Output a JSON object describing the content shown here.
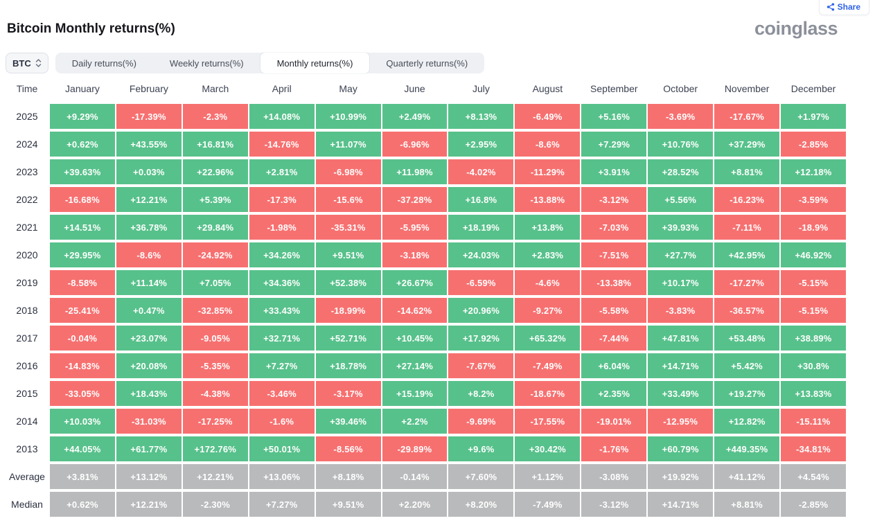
{
  "header": {
    "title": "Bitcoin Monthly returns(%)",
    "brand": "coinglass",
    "share_label": "Share"
  },
  "controls": {
    "symbol": "BTC",
    "tabs": [
      {
        "label": "Daily returns(%)",
        "active": false
      },
      {
        "label": "Weekly returns(%)",
        "active": false
      },
      {
        "label": "Monthly returns(%)",
        "active": true
      },
      {
        "label": "Quarterly returns(%)",
        "active": false
      }
    ]
  },
  "colors": {
    "positive": "#57c18b",
    "negative": "#f77070",
    "summary": "#b9babc",
    "accent": "#2d62e8"
  },
  "chart_data": {
    "type": "heatmap",
    "title": "Bitcoin Monthly returns(%)",
    "time_header": "Time",
    "months": [
      "January",
      "February",
      "March",
      "April",
      "May",
      "June",
      "July",
      "August",
      "September",
      "October",
      "November",
      "December"
    ],
    "rows": [
      {
        "label": "2025",
        "kind": "year",
        "values": [
          "+9.29%",
          "-17.39%",
          "-2.3%",
          "+14.08%",
          "+10.99%",
          "+2.49%",
          "+8.13%",
          "-6.49%",
          "+5.16%",
          "-3.69%",
          "-17.67%",
          "+1.97%"
        ]
      },
      {
        "label": "2024",
        "kind": "year",
        "values": [
          "+0.62%",
          "+43.55%",
          "+16.81%",
          "-14.76%",
          "+11.07%",
          "-6.96%",
          "+2.95%",
          "-8.6%",
          "+7.29%",
          "+10.76%",
          "+37.29%",
          "-2.85%"
        ]
      },
      {
        "label": "2023",
        "kind": "year",
        "values": [
          "+39.63%",
          "+0.03%",
          "+22.96%",
          "+2.81%",
          "-6.98%",
          "+11.98%",
          "-4.02%",
          "-11.29%",
          "+3.91%",
          "+28.52%",
          "+8.81%",
          "+12.18%"
        ]
      },
      {
        "label": "2022",
        "kind": "year",
        "values": [
          "-16.68%",
          "+12.21%",
          "+5.39%",
          "-17.3%",
          "-15.6%",
          "-37.28%",
          "+16.8%",
          "-13.88%",
          "-3.12%",
          "+5.56%",
          "-16.23%",
          "-3.59%"
        ]
      },
      {
        "label": "2021",
        "kind": "year",
        "values": [
          "+14.51%",
          "+36.78%",
          "+29.84%",
          "-1.98%",
          "-35.31%",
          "-5.95%",
          "+18.19%",
          "+13.8%",
          "-7.03%",
          "+39.93%",
          "-7.11%",
          "-18.9%"
        ]
      },
      {
        "label": "2020",
        "kind": "year",
        "values": [
          "+29.95%",
          "-8.6%",
          "-24.92%",
          "+34.26%",
          "+9.51%",
          "-3.18%",
          "+24.03%",
          "+2.83%",
          "-7.51%",
          "+27.7%",
          "+42.95%",
          "+46.92%"
        ]
      },
      {
        "label": "2019",
        "kind": "year",
        "values": [
          "-8.58%",
          "+11.14%",
          "+7.05%",
          "+34.36%",
          "+52.38%",
          "+26.67%",
          "-6.59%",
          "-4.6%",
          "-13.38%",
          "+10.17%",
          "-17.27%",
          "-5.15%"
        ]
      },
      {
        "label": "2018",
        "kind": "year",
        "values": [
          "-25.41%",
          "+0.47%",
          "-32.85%",
          "+33.43%",
          "-18.99%",
          "-14.62%",
          "+20.96%",
          "-9.27%",
          "-5.58%",
          "-3.83%",
          "-36.57%",
          "-5.15%"
        ]
      },
      {
        "label": "2017",
        "kind": "year",
        "values": [
          "-0.04%",
          "+23.07%",
          "-9.05%",
          "+32.71%",
          "+52.71%",
          "+10.45%",
          "+17.92%",
          "+65.32%",
          "-7.44%",
          "+47.81%",
          "+53.48%",
          "+38.89%"
        ]
      },
      {
        "label": "2016",
        "kind": "year",
        "values": [
          "-14.83%",
          "+20.08%",
          "-5.35%",
          "+7.27%",
          "+18.78%",
          "+27.14%",
          "-7.67%",
          "-7.49%",
          "+6.04%",
          "+14.71%",
          "+5.42%",
          "+30.8%"
        ]
      },
      {
        "label": "2015",
        "kind": "year",
        "values": [
          "-33.05%",
          "+18.43%",
          "-4.38%",
          "-3.46%",
          "-3.17%",
          "+15.19%",
          "+8.2%",
          "-18.67%",
          "+2.35%",
          "+33.49%",
          "+19.27%",
          "+13.83%"
        ]
      },
      {
        "label": "2014",
        "kind": "year",
        "values": [
          "+10.03%",
          "-31.03%",
          "-17.25%",
          "-1.6%",
          "+39.46%",
          "+2.2%",
          "-9.69%",
          "-17.55%",
          "-19.01%",
          "-12.95%",
          "+12.82%",
          "-15.11%"
        ]
      },
      {
        "label": "2013",
        "kind": "year",
        "values": [
          "+44.05%",
          "+61.77%",
          "+172.76%",
          "+50.01%",
          "-8.56%",
          "-29.89%",
          "+9.6%",
          "+30.42%",
          "-1.76%",
          "+60.79%",
          "+449.35%",
          "-34.81%"
        ]
      },
      {
        "label": "Average",
        "kind": "summary",
        "values": [
          "+3.81%",
          "+13.12%",
          "+12.21%",
          "+13.06%",
          "+8.18%",
          "-0.14%",
          "+7.60%",
          "+1.12%",
          "-3.08%",
          "+19.92%",
          "+41.12%",
          "+4.54%"
        ]
      },
      {
        "label": "Median",
        "kind": "summary",
        "values": [
          "+0.62%",
          "+12.21%",
          "-2.30%",
          "+7.27%",
          "+9.51%",
          "+2.20%",
          "+8.20%",
          "-7.49%",
          "-3.12%",
          "+14.71%",
          "+8.81%",
          "-2.85%"
        ]
      }
    ]
  }
}
